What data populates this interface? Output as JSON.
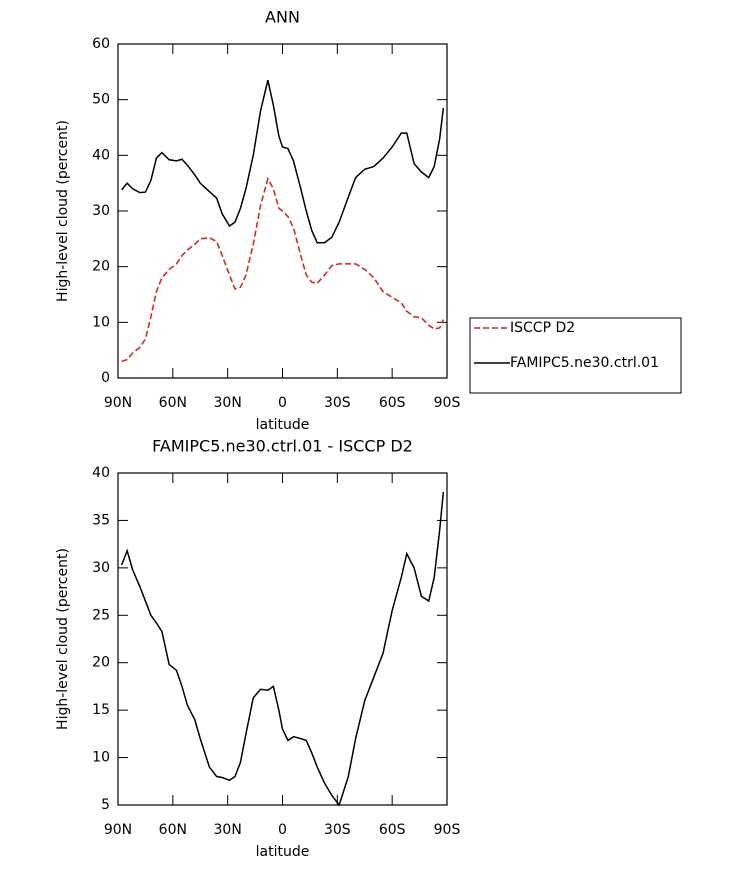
{
  "chart_data": [
    {
      "type": "line",
      "title": "ANN",
      "xlabel": "latitude",
      "ylabel": "High-level cloud (percent)",
      "x": [
        88,
        85,
        82,
        78,
        75,
        72,
        69,
        66,
        62,
        58,
        55,
        52,
        48,
        45,
        40,
        36,
        33,
        29,
        26,
        23,
        20,
        16,
        12,
        8,
        5,
        2,
        0,
        -3,
        -6,
        -10,
        -13,
        -16,
        -19,
        -23,
        -27,
        -31,
        -36,
        -40,
        -45,
        -50,
        -55,
        -60,
        -65,
        -68,
        -72,
        -76,
        -80,
        -83,
        -86,
        -88
      ],
      "series": [
        {
          "name": "ISCCP D2",
          "color": "#e41a1c",
          "linestyle": "dashed",
          "values": [
            3,
            3.3,
            4.5,
            5.5,
            7,
            11,
            15.5,
            18,
            19.5,
            20.5,
            22,
            23,
            24,
            25,
            25.2,
            24.5,
            22,
            18.5,
            16,
            16.3,
            18.5,
            24,
            31,
            35.8,
            34,
            30.5,
            30,
            29,
            27,
            22,
            18.5,
            17.2,
            17,
            18.5,
            20.2,
            20.5,
            20.5,
            20.5,
            19.5,
            18,
            15.5,
            14.5,
            13.5,
            12,
            11,
            10.8,
            9.5,
            8.8,
            9,
            10.5
          ]
        },
        {
          "name": "FAMIPC5.ne30.ctrl.01",
          "color": "#000000",
          "linestyle": "solid",
          "values": [
            33.8,
            35,
            34,
            33.3,
            33.4,
            35.5,
            39.5,
            40.5,
            39.2,
            39,
            39.3,
            38.2,
            36.5,
            35,
            33.5,
            32.3,
            29.5,
            27.3,
            28,
            30.5,
            34,
            40,
            48,
            53.5,
            49,
            43.5,
            41.5,
            41.2,
            39,
            34,
            30,
            26.5,
            24.3,
            24.3,
            25.3,
            28,
            32.5,
            36,
            37.5,
            38,
            39.5,
            41.5,
            44,
            44,
            38.5,
            37,
            36,
            38,
            43,
            48.5
          ]
        }
      ],
      "xlim": [
        90,
        -90
      ],
      "xticks": [
        {
          "value": 90,
          "label": "90N"
        },
        {
          "value": 60,
          "label": "60N"
        },
        {
          "value": 30,
          "label": "30N"
        },
        0,
        {
          "value": -30,
          "label": "30S"
        },
        {
          "value": -60,
          "label": "60S"
        },
        {
          "value": -90,
          "label": "90S"
        }
      ],
      "ylim": [
        0,
        60
      ],
      "yticks": [
        0,
        10,
        20,
        30,
        40,
        50,
        60
      ],
      "legend": "outside-right"
    },
    {
      "type": "line",
      "title": "FAMIPC5.ne30.ctrl.01 - ISCCP D2",
      "xlabel": "latitude",
      "ylabel": "High-level cloud (percent)",
      "x": [
        88,
        85,
        82,
        78,
        75,
        72,
        69,
        66,
        62,
        58,
        55,
        52,
        48,
        45,
        40,
        36,
        33,
        29,
        26,
        23,
        20,
        16,
        12,
        8,
        5,
        2,
        0,
        -3,
        -6,
        -10,
        -13,
        -16,
        -19,
        -23,
        -27,
        -31,
        -36,
        -40,
        -45,
        -50,
        -55,
        -60,
        -65,
        -68,
        -72,
        -76,
        -80,
        -83,
        -86,
        -88
      ],
      "series": [
        {
          "color": "#000000",
          "linestyle": "solid",
          "values": [
            30.3,
            31.8,
            29.8,
            28,
            26.5,
            25,
            24.2,
            23.3,
            19.8,
            19.2,
            17.5,
            15.5,
            14,
            12,
            9,
            8,
            7.9,
            7.6,
            8,
            9.5,
            12.5,
            16.3,
            17.2,
            17.1,
            17.5,
            15,
            13,
            11.8,
            12.2,
            12,
            11.8,
            10.5,
            9,
            7.3,
            6,
            5,
            8,
            12,
            16,
            18.5,
            21,
            25.5,
            29,
            31.5,
            30,
            27,
            26.5,
            29,
            34,
            38
          ]
        }
      ],
      "xlim": [
        90,
        -90
      ],
      "xticks": [
        {
          "value": 90,
          "label": "90N"
        },
        {
          "value": 60,
          "label": "60N"
        },
        {
          "value": 30,
          "label": "30N"
        },
        0,
        {
          "value": -30,
          "label": "30S"
        },
        {
          "value": -60,
          "label": "60S"
        },
        {
          "value": -90,
          "label": "90S"
        }
      ],
      "ylim": [
        5,
        40
      ],
      "yticks": [
        5,
        10,
        15,
        20,
        25,
        30,
        35,
        40
      ]
    }
  ]
}
